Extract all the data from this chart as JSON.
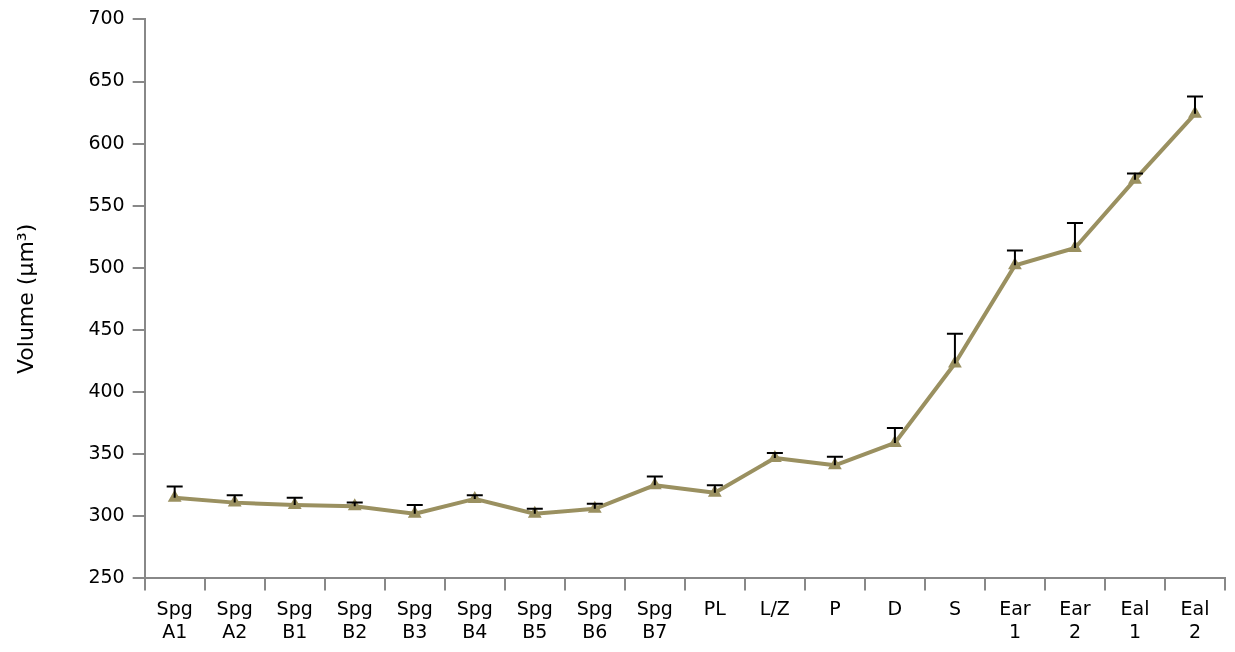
{
  "chart_data": {
    "type": "line",
    "ylabel": "Volume (µm³)",
    "categories": [
      "Spg A1",
      "Spg A2",
      "Spg B1",
      "Spg B2",
      "Spg B3",
      "Spg B4",
      "Spg B5",
      "Spg B6",
      "Spg B7",
      "PL",
      "L/Z",
      "P",
      "D",
      "S",
      "Ear 1",
      "Ear 2",
      "Eal 1",
      "Eal 2"
    ],
    "series": [
      {
        "color": "#9a9060",
        "values": [
          315,
          311,
          309,
          308,
          302,
          314,
          302,
          306,
          325,
          319,
          347,
          341,
          359,
          423,
          502,
          516,
          571,
          624
        ],
        "errors": [
          [
            315,
            324
          ],
          [
            311,
            317
          ],
          [
            309,
            315
          ],
          [
            308,
            311
          ],
          [
            302,
            309
          ],
          [
            314,
            317
          ],
          [
            302,
            306
          ],
          [
            306,
            310
          ],
          [
            325,
            332
          ],
          [
            319,
            325
          ],
          [
            347,
            351
          ],
          [
            341,
            348
          ],
          [
            359,
            371
          ],
          [
            423,
            447
          ],
          [
            502,
            514
          ],
          [
            516,
            536
          ],
          [
            571,
            576
          ],
          [
            624,
            638
          ]
        ]
      }
    ],
    "ylim": [
      250,
      700
    ],
    "yticks": [
      250,
      300,
      350,
      400,
      450,
      500,
      550,
      600,
      650,
      700
    ],
    "grid": false,
    "legend": false,
    "marker": "triangle",
    "line_style": "solid"
  }
}
